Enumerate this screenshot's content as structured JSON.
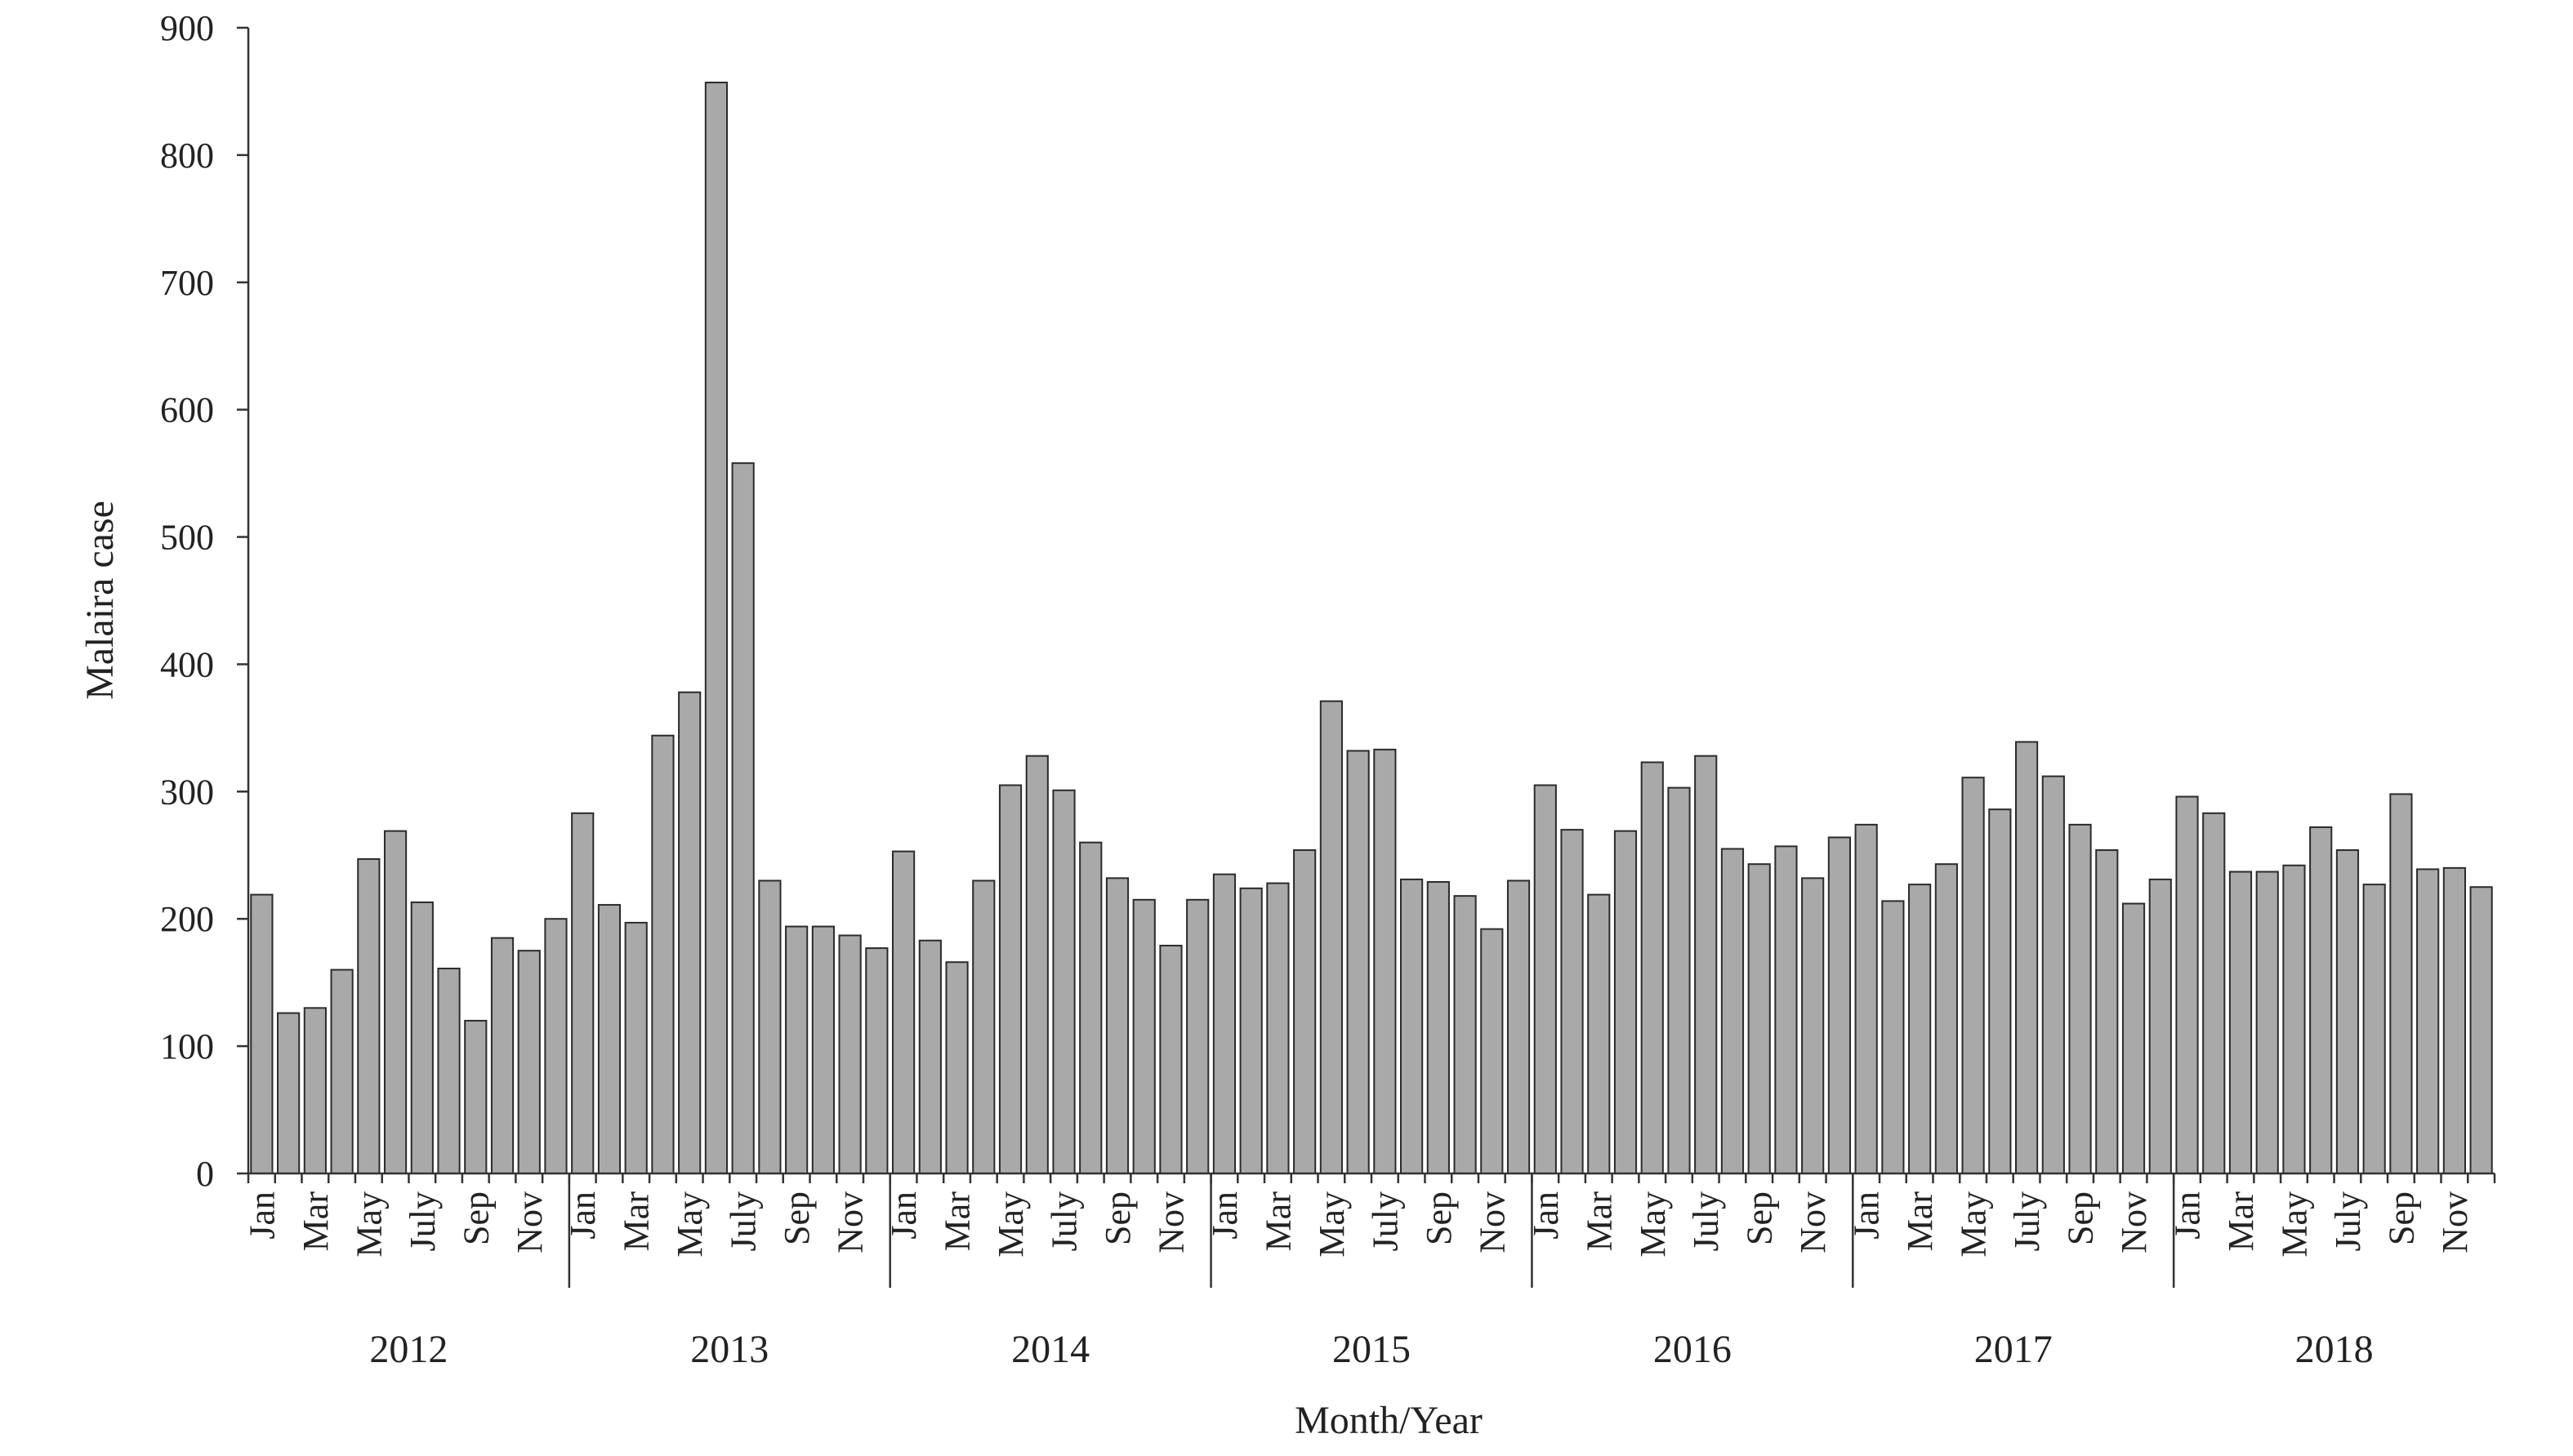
{
  "chart_data": {
    "type": "bar",
    "title": "",
    "xlabel": "Month/Year",
    "ylabel": "Malaira case",
    "ylim": [
      0,
      900
    ],
    "yticks": [
      0,
      100,
      200,
      300,
      400,
      500,
      600,
      700,
      800,
      900
    ],
    "grid": false,
    "legend": "none",
    "bar_color": "#a9a9a9",
    "month_tick_labels": [
      "Jan",
      "Mar",
      "May",
      "July",
      "Sep",
      "Nov"
    ],
    "years": [
      "2012",
      "2013",
      "2014",
      "2015",
      "2016",
      "2017",
      "2018"
    ],
    "values": [
      219,
      126,
      130,
      160,
      247,
      269,
      213,
      161,
      120,
      185,
      175,
      200,
      283,
      211,
      197,
      344,
      378,
      857,
      558,
      230,
      194,
      194,
      187,
      177,
      253,
      183,
      166,
      230,
      305,
      328,
      301,
      260,
      232,
      215,
      179,
      215,
      235,
      224,
      228,
      254,
      371,
      332,
      333,
      231,
      229,
      218,
      192,
      230,
      305,
      270,
      219,
      269,
      323,
      303,
      328,
      255,
      243,
      257,
      232,
      264,
      274,
      214,
      227,
      243,
      311,
      286,
      339,
      312,
      274,
      254,
      212,
      231,
      296,
      283,
      237,
      237,
      242,
      272,
      254,
      227,
      298,
      239,
      240,
      225
    ]
  }
}
